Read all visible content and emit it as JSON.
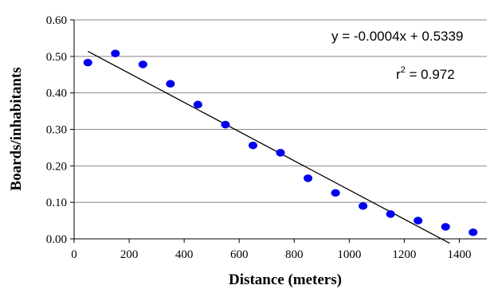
{
  "chart_data": {
    "type": "scatter",
    "xlabel": "Distance (meters)",
    "ylabel": "Boards/inhabitants",
    "xlim": [
      0,
      1500
    ],
    "ylim": [
      0,
      0.6
    ],
    "x_ticks": [
      "0",
      "200",
      "400",
      "600",
      "800",
      "1000",
      "1200",
      "1400"
    ],
    "y_ticks": [
      "0.00",
      "0.10",
      "0.20",
      "0.30",
      "0.40",
      "0.50",
      "0.60"
    ],
    "grid": "horizontal",
    "colors": {
      "points": "#0000ee",
      "trendline": "#000000",
      "grid": "#888888"
    },
    "points": [
      {
        "x": 50,
        "y": 0.483
      },
      {
        "x": 150,
        "y": 0.508
      },
      {
        "x": 250,
        "y": 0.478
      },
      {
        "x": 350,
        "y": 0.425
      },
      {
        "x": 450,
        "y": 0.368
      },
      {
        "x": 550,
        "y": 0.313
      },
      {
        "x": 650,
        "y": 0.256
      },
      {
        "x": 750,
        "y": 0.236
      },
      {
        "x": 850,
        "y": 0.166
      },
      {
        "x": 950,
        "y": 0.126
      },
      {
        "x": 1050,
        "y": 0.09
      },
      {
        "x": 1150,
        "y": 0.068
      },
      {
        "x": 1250,
        "y": 0.05
      },
      {
        "x": 1350,
        "y": 0.033
      },
      {
        "x": 1450,
        "y": 0.018
      }
    ],
    "trendline": {
      "slope": -0.0004,
      "intercept": 0.5339,
      "x_start": 50,
      "x_end": 1365
    },
    "annotations": {
      "equation": "y = -0.0004x + 0.5339",
      "r2_prefix": "r",
      "r2_exponent": "2",
      "r2_value": " = 0.972"
    }
  }
}
